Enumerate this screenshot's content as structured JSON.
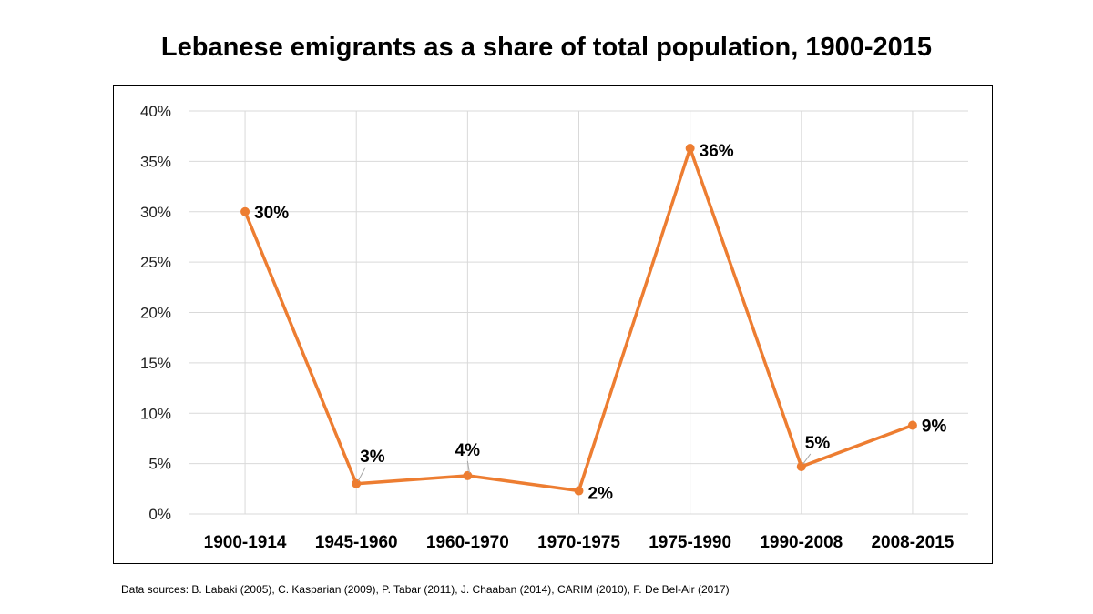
{
  "title": "Lebanese emigrants as a share of total population, 1900-2015",
  "source": "Data sources: B. Labaki (2005), C. Kasparian (2009), P. Tabar (2011), J. Chaaban (2014), CARIM (2010), F. De Bel-Air (2017)",
  "colors": {
    "line": "#ED7D31",
    "grid": "#D9D9D9",
    "leader": "#A6A6A6"
  },
  "chart_data": {
    "type": "line",
    "title": "Lebanese emigrants as a share of total population, 1900-2015",
    "xlabel": "",
    "ylabel": "",
    "categories": [
      "1900-1914",
      "1945-1960",
      "1960-1970",
      "1970-1975",
      "1975-1990",
      "1990-2008",
      "2008-2015"
    ],
    "series": [
      {
        "name": "Emigrants share",
        "values": [
          30,
          3,
          3.8,
          2.3,
          36.3,
          4.7,
          8.8
        ]
      }
    ],
    "data_labels": [
      "30%",
      "3%",
      "4%",
      "2%",
      "36%",
      "5%",
      "9%"
    ],
    "ylim": [
      0,
      40
    ],
    "yticks": [
      0,
      5,
      10,
      15,
      20,
      25,
      30,
      35,
      40
    ],
    "ytick_labels": [
      "0%",
      "5%",
      "10%",
      "15%",
      "20%",
      "25%",
      "30%",
      "35%",
      "40%"
    ],
    "grid": true,
    "legend": "none"
  }
}
